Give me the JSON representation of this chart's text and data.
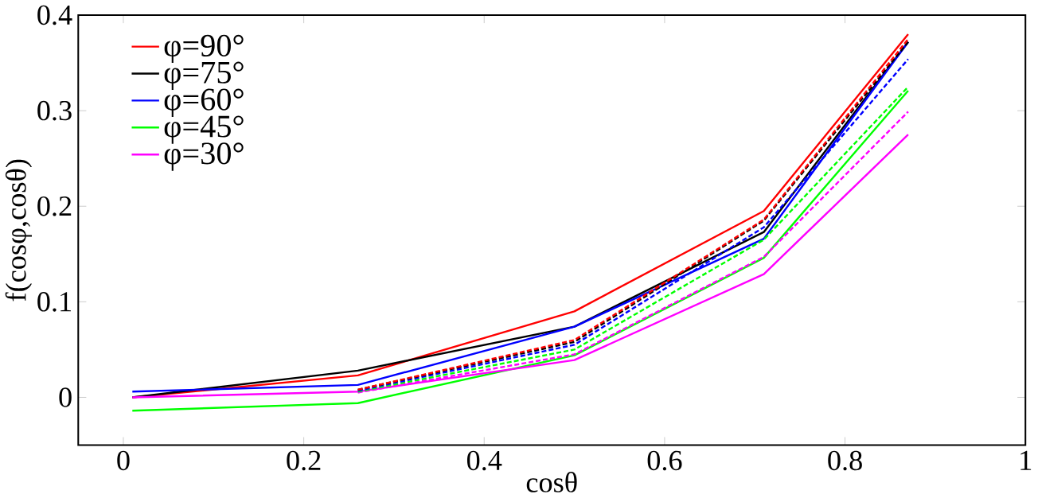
{
  "chart_data": {
    "type": "line",
    "xlabel": "cosθ",
    "ylabel": "f(cosφ,cosθ)",
    "x": [
      0.01,
      0.26,
      0.5,
      0.71,
      0.87
    ],
    "xlim": [
      -0.05,
      1
    ],
    "ylim": [
      -0.05,
      0.4
    ],
    "xticks": [
      0,
      0.2,
      0.4,
      0.6,
      0.8,
      1
    ],
    "yticks": [
      0,
      0.1,
      0.2,
      0.3,
      0.4
    ],
    "legend": "top left",
    "grid": false,
    "series": [
      {
        "name": "φ=90°",
        "color": "#ff0000",
        "line_style": "solid",
        "values": [
          0,
          0.023,
          0.09,
          0.195,
          0.38
        ]
      },
      {
        "name": "φ=75°",
        "color": "#000000",
        "line_style": "solid",
        "values": [
          0,
          0.028,
          0.074,
          0.173,
          0.372
        ]
      },
      {
        "name": "φ=60°",
        "color": "#0000ff",
        "line_style": "solid",
        "values": [
          0.006,
          0.013,
          0.074,
          0.166,
          0.372
        ]
      },
      {
        "name": "φ=45°",
        "color": "#00ff00",
        "line_style": "solid",
        "values": [
          -0.014,
          -0.006,
          0.044,
          0.146,
          0.321
        ]
      },
      {
        "name": "φ=30°",
        "color": "#ff00ff",
        "line_style": "solid",
        "values": [
          0,
          0.006,
          0.039,
          0.129,
          0.275
        ]
      },
      {
        "color": "#ff0000",
        "line_style": "dashed",
        "values": [
          null,
          0.008,
          0.06,
          0.186,
          0.375
        ]
      },
      {
        "color": "#000000",
        "line_style": "dashed",
        "values": [
          null,
          0.008,
          0.058,
          0.185,
          0.372
        ]
      },
      {
        "color": "#0000ff",
        "line_style": "dashed",
        "values": [
          null,
          0.007,
          0.055,
          0.178,
          0.354
        ]
      },
      {
        "color": "#00ff00",
        "line_style": "dashed",
        "values": [
          null,
          0.006,
          0.05,
          0.165,
          0.325
        ]
      },
      {
        "color": "#ff00ff",
        "line_style": "dashed",
        "values": [
          null,
          0.005,
          0.045,
          0.147,
          0.299
        ]
      }
    ]
  }
}
